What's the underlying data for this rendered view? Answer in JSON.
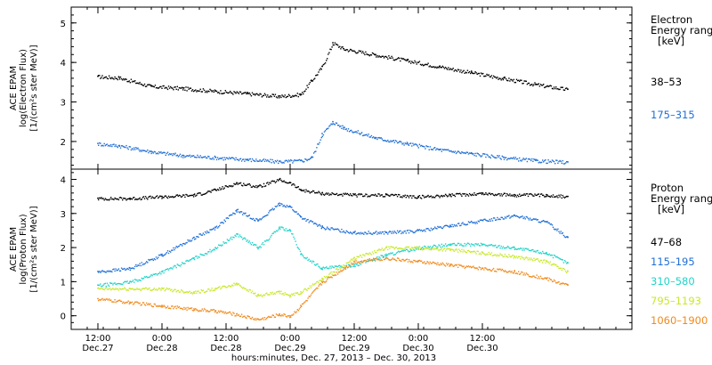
{
  "chart_data": [
    {
      "type": "scatter",
      "instrument": "ACE EPAM",
      "ylabel_line2": "log(Electron Flux)",
      "ylabel_line3": "[1/(cm²s ster MeV)]",
      "ylim": [
        1.3,
        5.4
      ],
      "yticks": [
        2,
        3,
        4,
        5
      ],
      "legend_title": [
        "Electron",
        "Energy ranges",
        "[keV]"
      ],
      "series": [
        {
          "name": "38–53",
          "color": "#000000",
          "x": [
            0,
            4,
            10,
            16,
            22,
            28,
            34,
            38,
            40,
            42,
            44,
            46,
            52,
            58,
            64,
            70,
            76,
            82,
            88
          ],
          "y": [
            3.65,
            3.62,
            3.4,
            3.35,
            3.28,
            3.22,
            3.15,
            3.2,
            3.55,
            3.9,
            4.5,
            4.35,
            4.2,
            4.05,
            3.9,
            3.75,
            3.6,
            3.45,
            3.32
          ]
        },
        {
          "name": "175–315",
          "color": "#1f6fd6",
          "x": [
            0,
            4,
            10,
            16,
            22,
            28,
            34,
            38,
            40,
            42,
            44,
            46,
            52,
            58,
            64,
            70,
            76,
            82,
            88
          ],
          "y": [
            1.95,
            1.9,
            1.75,
            1.65,
            1.6,
            1.55,
            1.5,
            1.52,
            1.6,
            2.2,
            2.5,
            2.35,
            2.1,
            1.95,
            1.8,
            1.7,
            1.6,
            1.52,
            1.48
          ]
        }
      ]
    },
    {
      "type": "scatter",
      "instrument": "ACE EPAM",
      "ylabel_line2": "log(Proton Flux)",
      "ylabel_line3": "[1/(cm²s ster MeV)]",
      "ylim": [
        -0.4,
        4.3
      ],
      "yticks": [
        0,
        1,
        2,
        3,
        4
      ],
      "legend_title": [
        "Proton",
        "Energy ranges",
        "[keV]"
      ],
      "series": [
        {
          "name": "47–68",
          "color": "#000000",
          "x": [
            0,
            6,
            12,
            18,
            22,
            26,
            30,
            34,
            36,
            38,
            42,
            48,
            54,
            60,
            66,
            72,
            78,
            84,
            88
          ],
          "y": [
            3.45,
            3.45,
            3.5,
            3.55,
            3.7,
            3.9,
            3.8,
            4.0,
            3.9,
            3.7,
            3.6,
            3.55,
            3.55,
            3.5,
            3.55,
            3.6,
            3.55,
            3.55,
            3.5
          ]
        },
        {
          "name": "115–195",
          "color": "#1f6fd6",
          "x": [
            0,
            6,
            12,
            18,
            22,
            26,
            30,
            34,
            36,
            38,
            42,
            48,
            54,
            60,
            66,
            72,
            78,
            84,
            88
          ],
          "y": [
            1.3,
            1.4,
            1.8,
            2.3,
            2.6,
            3.1,
            2.8,
            3.3,
            3.2,
            2.9,
            2.6,
            2.45,
            2.45,
            2.5,
            2.65,
            2.8,
            2.95,
            2.75,
            2.3
          ]
        },
        {
          "name": "310–580",
          "color": "#22d3c8",
          "x": [
            0,
            6,
            12,
            18,
            22,
            26,
            30,
            34,
            36,
            38,
            42,
            48,
            54,
            60,
            66,
            72,
            78,
            84,
            88
          ],
          "y": [
            0.9,
            1.0,
            1.3,
            1.7,
            2.0,
            2.4,
            2.0,
            2.6,
            2.5,
            1.8,
            1.4,
            1.5,
            1.8,
            2.0,
            2.1,
            2.1,
            2.0,
            1.85,
            1.55
          ]
        },
        {
          "name": "795–1193",
          "color": "#c8e82a",
          "x": [
            0,
            6,
            12,
            18,
            22,
            26,
            30,
            34,
            36,
            38,
            42,
            48,
            54,
            60,
            66,
            72,
            78,
            84,
            88
          ],
          "y": [
            0.8,
            0.8,
            0.8,
            0.7,
            0.8,
            0.95,
            0.6,
            0.7,
            0.6,
            0.7,
            1.1,
            1.7,
            2.0,
            2.0,
            1.95,
            1.85,
            1.75,
            1.6,
            1.3
          ]
        },
        {
          "name": "1060–1900",
          "color": "#f08a1c",
          "x": [
            0,
            6,
            12,
            18,
            22,
            26,
            30,
            34,
            36,
            38,
            42,
            48,
            54,
            60,
            66,
            72,
            78,
            84,
            88
          ],
          "y": [
            0.5,
            0.4,
            0.3,
            0.2,
            0.15,
            0.05,
            -0.1,
            0.05,
            0.0,
            0.3,
            1.0,
            1.6,
            1.7,
            1.6,
            1.5,
            1.4,
            1.3,
            1.1,
            0.9
          ]
        }
      ]
    }
  ],
  "x_axis": {
    "range_hours": [
      -5,
      100
    ],
    "ticks": [
      {
        "h": 0,
        "time": "12:00",
        "date": "Dec.27"
      },
      {
        "h": 12,
        "time": "0:00",
        "date": "Dec.28"
      },
      {
        "h": 24,
        "time": "12:00",
        "date": "Dec.28"
      },
      {
        "h": 36,
        "time": "0:00",
        "date": "Dec.29"
      },
      {
        "h": 48,
        "time": "12:00",
        "date": "Dec.29"
      },
      {
        "h": 60,
        "time": "0:00",
        "date": "Dec.30"
      },
      {
        "h": 72,
        "time": "12:00",
        "date": "Dec.30"
      }
    ],
    "label": "hours:minutes, Dec. 27, 2013 – Dec. 30, 2013"
  }
}
